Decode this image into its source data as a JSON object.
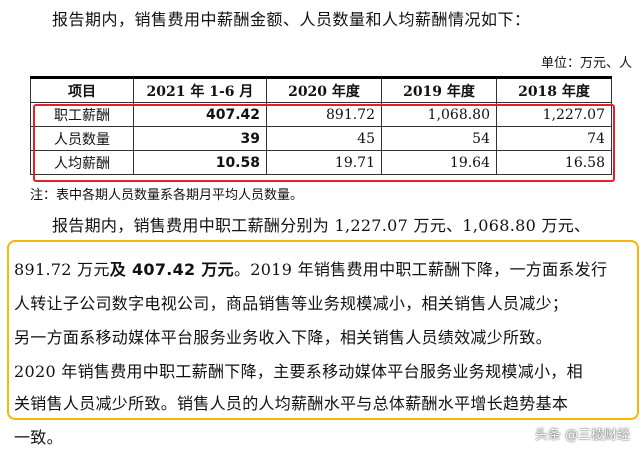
{
  "intro": "报告期内，销售费用中薪酬金额、人员数量和人均薪酬情况如下：",
  "unit": "单位：万元、人",
  "table": {
    "headers": [
      "项目",
      "2021 年 1-6 月",
      "2020 年度",
      "2019 年度",
      "2018 年度"
    ],
    "rows": [
      {
        "label": "职工薪酬",
        "values": [
          "407.42",
          "891.72",
          "1,068.80",
          "1,227.07"
        ]
      },
      {
        "label": "人员数量",
        "values": [
          "39",
          "45",
          "54",
          "74"
        ]
      },
      {
        "label": "人均薪酬",
        "values": [
          "10.58",
          "19.71",
          "19.64",
          "16.58"
        ]
      }
    ]
  },
  "note": "注：表中各期人员数量系各期月平均人员数量。",
  "paragraph": {
    "line1": "报告期内，销售费用中职工薪酬分别为 1,227.07 万元、1,068.80 万元、",
    "line2_normal": "891.72 万元",
    "line2_bold": "及 407.42 万元",
    "line2_rest": "。2019 年销售费用中职工薪酬下降，一方面系发行",
    "line3": "人转让子公司数字电视公司，商品销售等业务规模减小，相关销售人员减少；",
    "line4": "另一方面系移动媒体平台服务业务收入下降，相关销售人员绩效减少所致。",
    "line5": "2020 年销售费用中职工薪酬下降，主要系移动媒体平台服务业务规模减小，相",
    "line6": "关销售人员减少所致。销售人员的人均薪酬水平与总体薪酬水平增长趋势基本",
    "line7": "一致。"
  },
  "watermark": "头条 @三棱财经",
  "colors": {
    "red_highlight": "#e0232b",
    "yellow_highlight": "#f5b70a"
  }
}
